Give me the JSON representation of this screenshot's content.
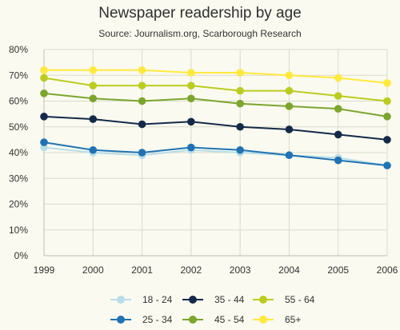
{
  "chart_data": {
    "type": "line",
    "title": "Newspaper readership by age",
    "subtitle": "Source: Journalism.org, Scarborough Research",
    "x": [
      "1999",
      "2000",
      "2001",
      "2002",
      "2003",
      "2004",
      "2005",
      "2006"
    ],
    "y_ticks": [
      "0%",
      "10%",
      "20%",
      "30%",
      "40%",
      "50%",
      "60%",
      "70%",
      "80%"
    ],
    "ylim": [
      0,
      80
    ],
    "grid": true,
    "legend_placement": "bottom",
    "series": [
      {
        "name": "18 - 24",
        "color": "#b9dde8",
        "values": [
          42,
          40,
          39,
          41,
          40,
          39,
          38,
          35
        ]
      },
      {
        "name": "25 - 34",
        "color": "#1f73b5",
        "values": [
          44,
          41,
          40,
          42,
          41,
          39,
          37,
          35
        ]
      },
      {
        "name": "35 - 44",
        "color": "#132a4a",
        "values": [
          54,
          53,
          51,
          52,
          50,
          49,
          47,
          45
        ]
      },
      {
        "name": "45 - 54",
        "color": "#7ba62d",
        "values": [
          63,
          61,
          60,
          61,
          59,
          58,
          57,
          54
        ]
      },
      {
        "name": "55 - 64",
        "color": "#bccc1f",
        "values": [
          69,
          66,
          66,
          66,
          64,
          64,
          62,
          60
        ]
      },
      {
        "name": "65+",
        "color": "#ffe93d",
        "values": [
          72,
          72,
          72,
          71,
          71,
          70,
          69,
          67
        ]
      }
    ]
  }
}
